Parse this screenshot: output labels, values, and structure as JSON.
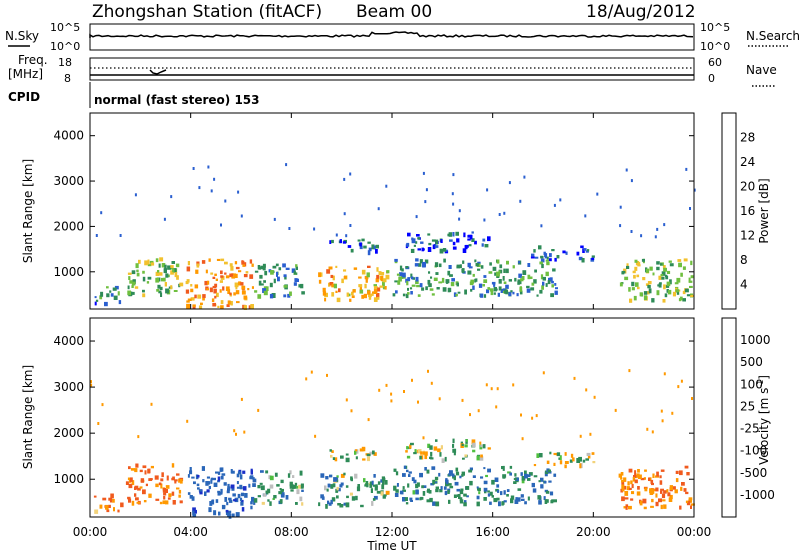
{
  "header": {
    "station": "Zhongshan Station (fitACF)",
    "beam": "Beam 00",
    "date": "18/Aug/2012"
  },
  "top_panel": {
    "left_label": "N.Sky",
    "left_ticks": [
      "10^5",
      "10^0"
    ],
    "right_label": "N.Search",
    "right_ticks": [
      "10^5",
      "10^0"
    ]
  },
  "freq_panel": {
    "left_label_line1": "Freq.",
    "left_label_line2": "[MHz]",
    "left_ticks": [
      "18",
      "8"
    ],
    "right_label": "Nave",
    "right_ticks": [
      "60",
      "0"
    ],
    "cpid_label": "CPID",
    "mode_text": "normal (fast stereo) 153"
  },
  "colors": {
    "power_scale": [
      "#0000ff",
      "#2a5fd0",
      "#2e8b57",
      "#6fbf3f",
      "#f2c12e",
      "#ff9900",
      "#f05a1e",
      "#e00000"
    ],
    "velocity_scale": [
      "#1a2fc8",
      "#2a66b8",
      "#2e8b57",
      "#4fbf3f",
      "#bebebe",
      "#f2d27a",
      "#ff9900",
      "#f05a1e",
      "#e00000"
    ]
  },
  "chart_data": [
    {
      "type": "heatmap",
      "name": "power",
      "xlabel": "Time UT",
      "ylabel": "Slant Range [km]",
      "x_ticks": [
        "00:00",
        "04:00",
        "08:00",
        "12:00",
        "16:00",
        "20:00",
        "00:00"
      ],
      "y_ticks": [
        "1000",
        "2000",
        "3000",
        "4000"
      ],
      "ylim": [
        180,
        4500
      ],
      "colorbar": {
        "label": "Power [dB]",
        "ticks": [
          "4",
          "8",
          "12",
          "16",
          "20",
          "24",
          "28"
        ],
        "range": [
          0,
          32
        ]
      },
      "regions": [
        {
          "t0": 0.1,
          "t1": 1.2,
          "r0": 300,
          "r1": 700,
          "v": 8
        },
        {
          "t0": 1.4,
          "t1": 3.6,
          "r0": 500,
          "r1": 1350,
          "v": 14
        },
        {
          "t0": 3.8,
          "t1": 6.5,
          "r0": 250,
          "r1": 1300,
          "v": 22
        },
        {
          "t0": 6.5,
          "t1": 8.5,
          "r0": 500,
          "r1": 1200,
          "v": 9
        },
        {
          "t0": 9.0,
          "t1": 11.8,
          "r0": 400,
          "r1": 1150,
          "v": 20
        },
        {
          "t0": 9.5,
          "t1": 11.5,
          "r0": 1450,
          "r1": 1750,
          "v": 6
        },
        {
          "t0": 12.5,
          "t1": 15.8,
          "r0": 1450,
          "r1": 1900,
          "v": 6
        },
        {
          "t0": 12.0,
          "t1": 18.5,
          "r0": 500,
          "r1": 1300,
          "v": 10
        },
        {
          "t0": 17.5,
          "t1": 20.0,
          "r0": 1300,
          "r1": 1600,
          "v": 5
        },
        {
          "t0": 21.0,
          "t1": 23.9,
          "r0": 400,
          "r1": 1300,
          "v": 14
        }
      ]
    },
    {
      "type": "heatmap",
      "name": "velocity",
      "xlabel": "Time UT",
      "ylabel": "Slant Range [km]",
      "x_ticks": [
        "00:00",
        "04:00",
        "08:00",
        "12:00",
        "16:00",
        "20:00",
        "00:00"
      ],
      "y_ticks": [
        "1000",
        "2000",
        "3000",
        "4000"
      ],
      "ylim": [
        180,
        4500
      ],
      "colorbar": {
        "label": "Velocity [m s^-1]",
        "ticks": [
          "1000",
          "500",
          "100",
          "25",
          "-25",
          "-100",
          "-500",
          "-1000"
        ]
      },
      "regions": [
        {
          "t0": 0.1,
          "t1": 1.2,
          "r0": 300,
          "r1": 700,
          "v": -300
        },
        {
          "t0": 1.4,
          "t1": 3.6,
          "r0": 500,
          "r1": 1350,
          "v": -400
        },
        {
          "t0": 3.8,
          "t1": 6.5,
          "r0": 250,
          "r1": 1300,
          "v": 600
        },
        {
          "t0": 6.5,
          "t1": 8.5,
          "r0": 500,
          "r1": 1200,
          "v": 200
        },
        {
          "t0": 9.0,
          "t1": 11.8,
          "r0": 400,
          "r1": 1150,
          "v": 150
        },
        {
          "t0": 9.5,
          "t1": 11.5,
          "r0": 1450,
          "r1": 1750,
          "v": 0
        },
        {
          "t0": 12.5,
          "t1": 15.8,
          "r0": 1450,
          "r1": 1900,
          "v": 0
        },
        {
          "t0": 12.0,
          "t1": 18.5,
          "r0": 500,
          "r1": 1300,
          "v": 300
        },
        {
          "t0": 17.5,
          "t1": 20.0,
          "r0": 1300,
          "r1": 1600,
          "v": 0
        },
        {
          "t0": 21.0,
          "t1": 23.9,
          "r0": 400,
          "r1": 1300,
          "v": -300
        }
      ]
    }
  ]
}
